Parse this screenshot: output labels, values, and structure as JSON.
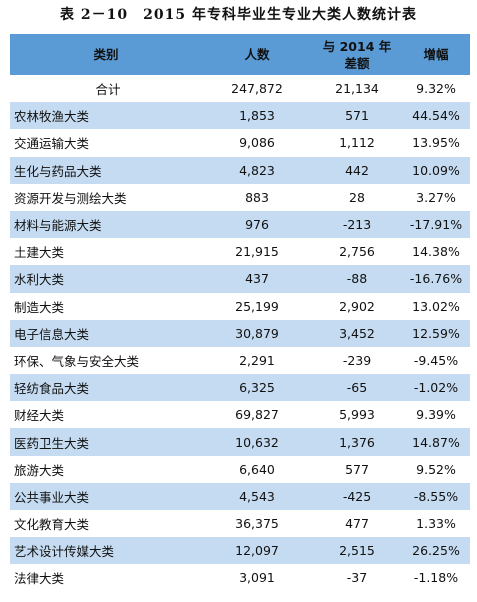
{
  "header": {
    "title": "表 2－10　2015 年专科毕业生专业大类人数统计表"
  },
  "table": {
    "columns": [
      "类别",
      "人数",
      [
        "与 2014 年",
        "差额"
      ],
      "增幅"
    ],
    "rows": [
      [
        "合计",
        "247,872",
        "21,134",
        "9.32%"
      ],
      [
        "农林牧渔大类",
        "1,853",
        "571",
        "44.54%"
      ],
      [
        "交通运输大类",
        "9,086",
        "1,112",
        "13.95%"
      ],
      [
        "生化与药品大类",
        "4,823",
        "442",
        "10.09%"
      ],
      [
        "资源开发与测绘大类",
        "883",
        "28",
        "3.27%"
      ],
      [
        "材料与能源大类",
        "976",
        "-213",
        "-17.91%"
      ],
      [
        "土建大类",
        "21,915",
        "2,756",
        "14.38%"
      ],
      [
        "水利大类",
        "437",
        "-88",
        "-16.76%"
      ],
      [
        "制造大类",
        "25,199",
        "2,902",
        "13.02%"
      ],
      [
        "电子信息大类",
        "30,879",
        "3,452",
        "12.59%"
      ],
      [
        "环保、气象与安全大类",
        "2,291",
        "-239",
        "-9.45%"
      ],
      [
        "轻纺食品大类",
        "6,325",
        "-65",
        "-1.02%"
      ],
      [
        "财经大类",
        "69,827",
        "5,993",
        "9.39%"
      ],
      [
        "医药卫生大类",
        "10,632",
        "1,376",
        "14.87%"
      ],
      [
        "旅游大类",
        "6,640",
        "577",
        "9.52%"
      ],
      [
        "公共事业大类",
        "4,543",
        "-425",
        "-8.55%"
      ],
      [
        "文化教育大类",
        "36,375",
        "477",
        "1.33%"
      ],
      [
        "艺术设计传媒大类",
        "12,097",
        "2,515",
        "26.25%"
      ],
      [
        "法律大类",
        "3,091",
        "-37",
        "-1.18%"
      ]
    ]
  }
}
